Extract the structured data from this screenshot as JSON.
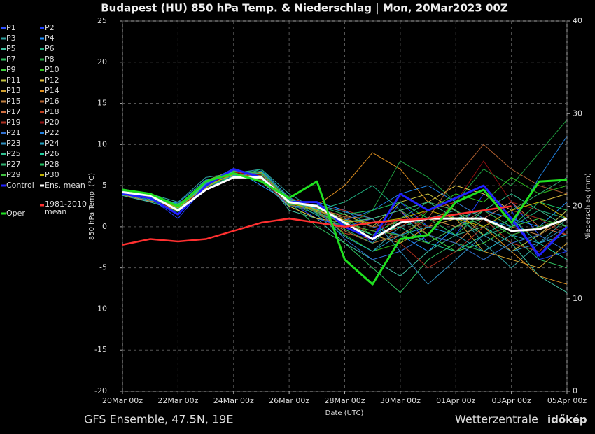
{
  "chart_data": {
    "type": "line",
    "title": "Budapest  (HU)  850 hPa Temp. & Niederschlag | Mon, 20Mar2023 00Z",
    "xlabel": "Date (UTC)",
    "ylabel": "850 hPa Temp. (°C)",
    "y2label": "Niederschlag (mm)",
    "annotations": [
      "GFS Ensemble, 47.5N, 19E",
      "Wetterzentrale",
      "időkép"
    ],
    "grid": true,
    "x": [
      0,
      1,
      2,
      3,
      4,
      5,
      6,
      7,
      8,
      9,
      10,
      11,
      12,
      13,
      14,
      15,
      16
    ],
    "xlim": [
      0,
      16
    ],
    "xticks": [
      {
        "value": 0,
        "label": "20Mar 00z"
      },
      {
        "value": 2,
        "label": "22Mar 00z"
      },
      {
        "value": 4,
        "label": "24Mar 00z"
      },
      {
        "value": 6,
        "label": "26Mar 00z"
      },
      {
        "value": 8,
        "label": "28Mar 00z"
      },
      {
        "value": 10,
        "label": "30Mar 00z"
      },
      {
        "value": 12,
        "label": "01Apr 00z"
      },
      {
        "value": 14,
        "label": "03Apr 00z"
      },
      {
        "value": 16,
        "label": "05Apr 00z"
      }
    ],
    "ylim": [
      -20,
      25
    ],
    "yticks": [
      -20,
      -15,
      -10,
      -5,
      0,
      5,
      10,
      15,
      20,
      25
    ],
    "y2lim": [
      0,
      40
    ],
    "y2ticks": [
      0,
      10,
      20,
      30,
      40
    ],
    "series": [
      {
        "name": "P1",
        "color": "#3050ff",
        "values": [
          4,
          3,
          2,
          5,
          7,
          6,
          3,
          1,
          0,
          1,
          2,
          -2,
          0,
          1,
          3,
          -1,
          2
        ]
      },
      {
        "name": "P2",
        "color": "#2040ff",
        "values": [
          4.5,
          3.5,
          1,
          5,
          6,
          6,
          2.5,
          2,
          1,
          -2,
          3,
          0,
          -1,
          4,
          2,
          -4,
          -3
        ]
      },
      {
        "name": "P3",
        "color": "#30a0a0",
        "values": [
          4,
          4,
          3,
          6,
          6.5,
          7,
          4,
          2,
          -1,
          -3,
          0,
          1,
          2,
          -2,
          -5,
          -2,
          1
        ]
      },
      {
        "name": "P4",
        "color": "#1e90ff",
        "values": [
          4.2,
          3.8,
          2.5,
          5.5,
          7,
          5,
          3,
          3,
          2,
          0,
          -1,
          -3,
          0,
          2,
          1,
          0,
          3
        ]
      },
      {
        "name": "P5",
        "color": "#40c0a0",
        "values": [
          3.8,
          3,
          2,
          4.5,
          6,
          6.5,
          2,
          1,
          -2,
          -4,
          -6,
          -3,
          -1,
          0,
          -2,
          -6,
          -8
        ]
      },
      {
        "name": "P6",
        "color": "#20b080",
        "values": [
          4.6,
          4,
          2.2,
          5,
          6,
          7,
          3.5,
          2,
          3,
          5,
          2,
          0,
          1,
          -1,
          0,
          2,
          1
        ]
      },
      {
        "name": "P7",
        "color": "#30c060",
        "values": [
          4,
          3.6,
          2.8,
          4.8,
          6.2,
          6,
          3,
          0,
          -2,
          -5,
          -8,
          -4,
          -2,
          -3,
          -1,
          -4,
          -5
        ]
      },
      {
        "name": "P8",
        "color": "#20a040",
        "values": [
          4.4,
          3.2,
          1.8,
          5.2,
          6.8,
          6.2,
          2.8,
          1.5,
          0,
          2,
          8,
          6,
          3,
          7,
          5,
          9,
          13
        ]
      },
      {
        "name": "P9",
        "color": "#40d040",
        "values": [
          4.1,
          3.9,
          2.4,
          5.1,
          6.4,
          5.8,
          3.2,
          2.2,
          1,
          -1,
          1,
          -1,
          -3,
          -2,
          0,
          1,
          0
        ]
      },
      {
        "name": "P10",
        "color": "#30c020",
        "values": [
          4.3,
          3.4,
          2.1,
          4.9,
          6.6,
          6.4,
          2.6,
          2.4,
          -1,
          -3,
          -2,
          2,
          4,
          3,
          6,
          4,
          5
        ]
      },
      {
        "name": "P11",
        "color": "#c0c040",
        "values": [
          4,
          3.7,
          2.6,
          5.3,
          6.1,
          6.3,
          3.3,
          1.8,
          1.5,
          0,
          3,
          4,
          2,
          -1,
          -3,
          -1,
          2
        ]
      },
      {
        "name": "P12",
        "color": "#e0c040",
        "values": [
          4.5,
          3.5,
          2,
          5,
          7,
          5.5,
          2.5,
          1,
          0.5,
          1,
          2,
          3,
          5,
          4,
          2,
          3,
          4
        ]
      },
      {
        "name": "P13",
        "color": "#d0a030",
        "values": [
          3.9,
          3.1,
          2.7,
          5.4,
          6.3,
          6.6,
          3.1,
          2.1,
          0.5,
          -1,
          -2,
          0,
          1,
          -3,
          -4,
          -5,
          -2
        ]
      },
      {
        "name": "P14",
        "color": "#e09020",
        "values": [
          4.2,
          4.1,
          2.3,
          4.7,
          6.7,
          6.1,
          2.9,
          2.6,
          5,
          9,
          7,
          3,
          2,
          0,
          -3,
          -6,
          -7
        ]
      },
      {
        "name": "P15",
        "color": "#c08040",
        "values": [
          4.6,
          3.3,
          1.9,
          5.6,
          6.9,
          5.9,
          3.4,
          1.7,
          -0.5,
          -2,
          -1,
          1,
          0,
          2,
          0,
          -1,
          1
        ]
      },
      {
        "name": "P16",
        "color": "#b06030",
        "values": [
          4.1,
          3.8,
          2.5,
          5,
          6.5,
          6,
          3,
          2,
          1,
          0,
          0.5,
          1,
          6,
          10,
          7,
          5,
          4
        ]
      },
      {
        "name": "P17",
        "color": "#d07040",
        "values": [
          4.3,
          3.6,
          2.4,
          5.2,
          6.2,
          6.2,
          3.2,
          2.3,
          1.2,
          1,
          2,
          -1,
          -2,
          1,
          3,
          0,
          -1
        ]
      },
      {
        "name": "P18",
        "color": "#c04020",
        "values": [
          4,
          3.5,
          2.2,
          4.9,
          6.8,
          5.7,
          2.7,
          1.9,
          -0.8,
          -1.5,
          0,
          2,
          3,
          1,
          -2,
          -3,
          0
        ]
      },
      {
        "name": "P19",
        "color": "#b03020",
        "values": [
          4.4,
          3.9,
          2.6,
          5.5,
          6.4,
          6.5,
          3.5,
          2.5,
          2,
          1,
          -2,
          -5,
          -3,
          0,
          2,
          1,
          -1
        ]
      },
      {
        "name": "P20",
        "color": "#901010",
        "values": [
          4.2,
          3.4,
          2,
          5,
          6.6,
          6.3,
          2.9,
          2,
          0.2,
          -0.5,
          1,
          0,
          3,
          8,
          3,
          2,
          0
        ]
      },
      {
        "name": "P21",
        "color": "#3070d0",
        "values": [
          4.5,
          3.7,
          2.3,
          5.3,
          7.1,
          6,
          3.1,
          2.2,
          -1.5,
          -4,
          -3,
          -1,
          -2,
          -4,
          -2,
          -1,
          -3
        ]
      },
      {
        "name": "P22",
        "color": "#2080e0",
        "values": [
          4,
          3.2,
          2.9,
          5.7,
          6,
          6.8,
          3.6,
          1.6,
          0.8,
          2,
          4,
          5,
          3,
          1,
          0,
          6,
          11
        ]
      },
      {
        "name": "P23",
        "color": "#3090c0",
        "values": [
          4.3,
          3.8,
          2.1,
          4.6,
          6.3,
          5.6,
          2.4,
          2.7,
          1.8,
          1,
          -3,
          -7,
          -4,
          -1,
          -3,
          -2,
          0
        ]
      },
      {
        "name": "P24",
        "color": "#20a0c0",
        "values": [
          4.1,
          4,
          2.7,
          5.2,
          6.9,
          6.4,
          3.3,
          1.4,
          -1.2,
          -3,
          -1,
          0,
          -1,
          -3,
          -1,
          -2,
          -1
        ]
      },
      {
        "name": "P25",
        "color": "#30c090",
        "values": [
          4.6,
          3.3,
          2.4,
          5.1,
          6.2,
          6.1,
          2.8,
          2.4,
          0.6,
          1,
          2,
          3,
          1,
          2,
          4,
          2,
          0
        ]
      },
      {
        "name": "P26",
        "color": "#20d0a0",
        "values": [
          3.9,
          3.6,
          2,
          5.4,
          6.7,
          6.7,
          3.4,
          2.1,
          0.3,
          -1,
          0,
          -2,
          -3,
          -1,
          1,
          -2,
          -4
        ]
      },
      {
        "name": "P27",
        "color": "#30b070",
        "values": [
          4.4,
          3.5,
          2.6,
          4.8,
          6.5,
          5.8,
          3,
          1.9,
          -0.3,
          -2,
          1,
          3,
          2,
          0,
          2,
          4,
          6
        ]
      },
      {
        "name": "P28",
        "color": "#20c060",
        "values": [
          4.2,
          3.9,
          2.2,
          5,
          6,
          6.2,
          2.7,
          2.6,
          1.5,
          2,
          3,
          1,
          -1,
          2,
          0,
          3,
          2
        ]
      },
      {
        "name": "P29",
        "color": "#40c040",
        "values": [
          4,
          3.4,
          2.5,
          5.6,
          6.8,
          6.5,
          3.2,
          1.7,
          0.4,
          -0.5,
          -1,
          -2,
          0,
          1,
          -1,
          0,
          1
        ]
      },
      {
        "name": "P30",
        "color": "#c0b000",
        "values": [
          4.5,
          3.7,
          2.3,
          4.9,
          6.4,
          5.9,
          2.9,
          2,
          0.8,
          0.5,
          1,
          2,
          1,
          0,
          2,
          3,
          1
        ]
      },
      {
        "name": "Control",
        "color": "#2020ff",
        "values": [
          4,
          3.5,
          1.5,
          5,
          7,
          6,
          3,
          3,
          0,
          -1.5,
          4,
          2,
          3.5,
          5,
          1,
          -3.5,
          0
        ]
      },
      {
        "name": "Ens. mean",
        "color": "#ffffff",
        "values": [
          4.2,
          3.8,
          2,
          4.5,
          6,
          6,
          3,
          2.5,
          0.5,
          -1.5,
          0.5,
          1,
          1,
          1,
          -0.5,
          -0.3,
          1
        ]
      },
      {
        "name": "1981-2010 mean",
        "color": "#ff3030",
        "values": [
          -2.2,
          -1.5,
          -1.8,
          -1.5,
          -0.5,
          0.5,
          1,
          0.5,
          0,
          0.5,
          0.8,
          1,
          1.5,
          2,
          2.5,
          null,
          null
        ]
      },
      {
        "name": "Oper",
        "color": "#20e020",
        "values": [
          4.5,
          4,
          2.5,
          5.5,
          6.5,
          5.5,
          3.5,
          5.5,
          -4,
          -7,
          -1.5,
          -1,
          3,
          4.5,
          0.5,
          5.5,
          5.7
        ]
      }
    ]
  }
}
